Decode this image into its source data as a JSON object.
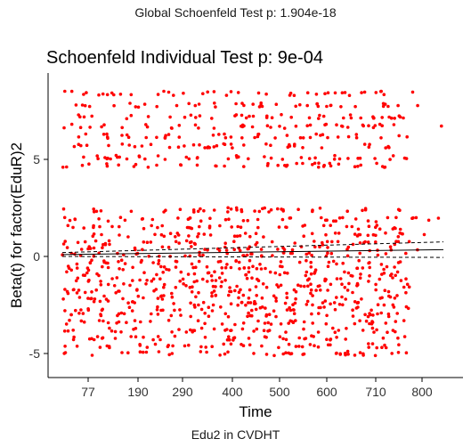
{
  "header": {
    "suptitle": "Global Schoenfeld Test p: 1.904e-18"
  },
  "footer": {
    "caption": "Edu2 in CVDHT"
  },
  "colors": {
    "points": "#ff0000",
    "smooth": "#000000",
    "background": "#ffffff"
  },
  "chart_data": {
    "type": "scatter",
    "title": "Schoenfeld Individual Test p: 9e-04",
    "xlabel": "Time",
    "ylabel": "Beta(t) for factor(EduR)2",
    "xticks": [
      "77",
      "190",
      "290",
      "400",
      "500",
      "600",
      "710",
      "800"
    ],
    "yticks": [
      -5,
      0,
      5
    ],
    "ylim": [
      -5.8,
      9.1
    ],
    "grid": false,
    "legend": "none",
    "point_bands": [
      -5,
      -4.6,
      -4.2,
      -3.8,
      -3.4,
      -3.0,
      -2.7,
      -2.4,
      -2.1,
      -1.8,
      -1.5,
      -1.2,
      -0.9,
      -0.6,
      -0.3,
      0.1,
      0.4,
      0.7,
      1.1,
      1.5,
      1.9,
      2.4,
      4.7,
      5.1,
      5.7,
      6.2,
      6.7,
      7.2,
      7.8,
      8.4
    ],
    "point_time_range": [
      "77",
      "800"
    ],
    "smooth_fit": {
      "start": 0.1,
      "end": 0.35
    },
    "smooth_band_upper": {
      "start": 0.2,
      "end": 0.75
    },
    "smooth_band_lower": {
      "start": 0.0,
      "end": -0.05
    }
  }
}
